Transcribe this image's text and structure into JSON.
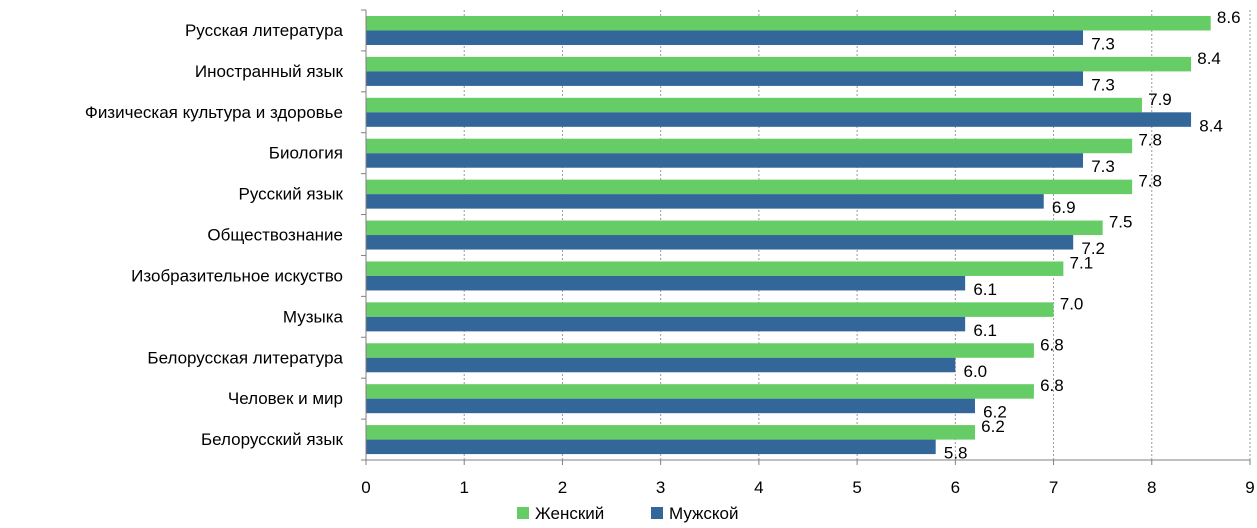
{
  "chart_data": {
    "type": "bar",
    "orientation": "horizontal",
    "categories": [
      "Русская литература",
      "Иностранный язык",
      "Физическая культура и здоровье",
      "Биология",
      "Русский язык",
      "Обществознание",
      "Изобразительное искуство",
      "Музыка",
      "Белорусская литература",
      "Человек и мир",
      "Белорусский язык"
    ],
    "series": [
      {
        "name": "Женский",
        "color": "#66CC66",
        "values": [
          8.6,
          8.4,
          7.9,
          7.8,
          7.8,
          7.5,
          7.1,
          7.0,
          6.8,
          6.8,
          6.2
        ],
        "labels": [
          "8.6",
          "8.4",
          "7.9",
          "7.8",
          "7.8",
          "7.5",
          "7.1",
          "7.0",
          "6.8",
          "6.8",
          "6.2"
        ]
      },
      {
        "name": "Мужской",
        "color": "#336699",
        "values": [
          7.3,
          7.3,
          8.4,
          7.3,
          6.9,
          7.2,
          6.1,
          6.1,
          6.0,
          6.2,
          5.8
        ],
        "labels": [
          "7.3",
          "7.3",
          "8.4",
          "7.3",
          "6.9",
          "7.2",
          "6.1",
          "6.1",
          "6.0",
          "6.2",
          "5.8"
        ]
      }
    ],
    "xlim": [
      0,
      9
    ],
    "xticks": [
      "0",
      "1",
      "2",
      "3",
      "4",
      "5",
      "6",
      "7",
      "8",
      "9"
    ],
    "grid": "vertical-dashed",
    "legend_position": "bottom"
  }
}
